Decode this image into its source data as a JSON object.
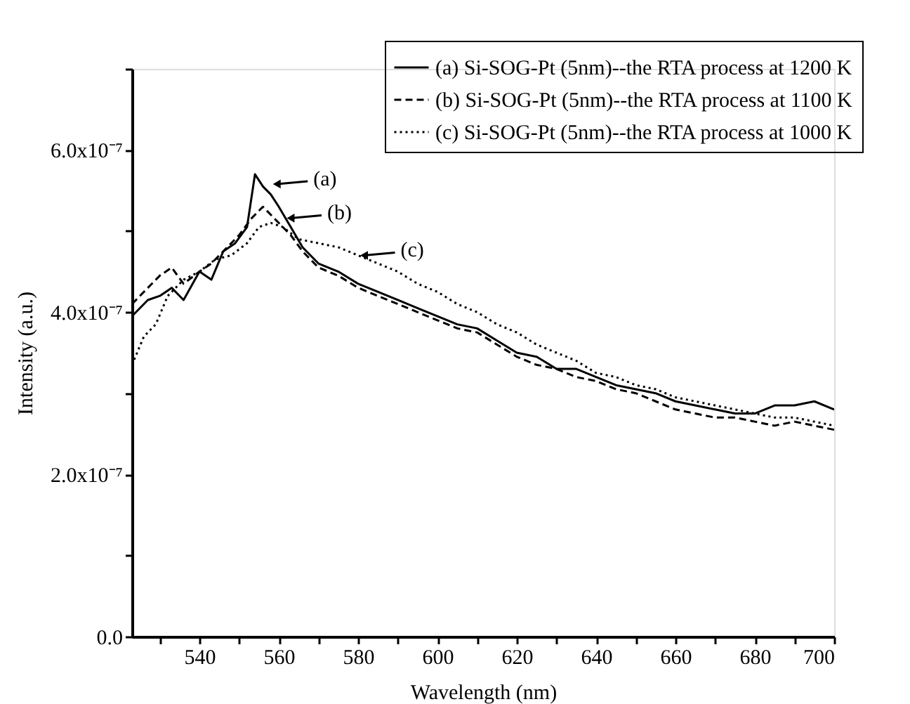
{
  "chart_data": {
    "type": "line",
    "xlabel": "Wavelength (nm)",
    "ylabel": "Intensity (a.u.)",
    "xlim": [
      523,
      700
    ],
    "ylim": [
      0,
      7e-07
    ],
    "xticks": [
      {
        "value": 530,
        "label": null
      },
      540,
      {
        "value": 550,
        "label": null
      },
      560,
      {
        "value": 570,
        "label": null
      },
      580,
      {
        "value": 590,
        "label": null
      },
      600,
      {
        "value": 610,
        "label": null
      },
      620,
      {
        "value": 630,
        "label": null
      },
      640,
      {
        "value": 650,
        "label": null
      },
      660,
      {
        "value": 670,
        "label": null
      },
      680,
      {
        "value": 690,
        "label": null
      },
      700
    ],
    "yticks": [
      {
        "value": 0,
        "label": "0.0"
      },
      {
        "value": 1e-07,
        "label": null
      },
      {
        "value": 2e-07,
        "label": "2.0x10⁻⁷"
      },
      {
        "value": 3e-07,
        "label": null
      },
      {
        "value": 4e-07,
        "label": "4.0x10⁻⁷"
      },
      {
        "value": 5e-07,
        "label": null
      },
      {
        "value": 6e-07,
        "label": "6.0x10⁻⁷"
      },
      {
        "value": 7e-07,
        "label": null
      }
    ],
    "legend": "top right",
    "grid": false,
    "marker": "none",
    "series": [
      {
        "name": "(a) Si-SOG-Pt (5nm)--the RTA process at 1200 K",
        "color": "#000000",
        "line_style": "solid",
        "x": [
          523,
          527,
          530,
          533,
          536,
          540,
          543,
          546,
          549,
          552,
          554,
          556,
          558,
          560,
          563,
          566,
          570,
          575,
          580,
          585,
          590,
          595,
          600,
          605,
          610,
          615,
          620,
          625,
          630,
          635,
          640,
          645,
          650,
          655,
          660,
          665,
          670,
          675,
          680,
          685,
          690,
          695,
          700
        ],
        "values": [
          3.95e-07,
          4.15e-07,
          4.2e-07,
          4.3e-07,
          4.15e-07,
          4.5e-07,
          4.4e-07,
          4.75e-07,
          4.85e-07,
          5.05e-07,
          5.7e-07,
          5.55e-07,
          5.45e-07,
          5.3e-07,
          5.05e-07,
          4.8e-07,
          4.6e-07,
          4.5e-07,
          4.35e-07,
          4.25e-07,
          4.15e-07,
          4.05e-07,
          3.95e-07,
          3.85e-07,
          3.8e-07,
          3.65e-07,
          3.5e-07,
          3.45e-07,
          3.3e-07,
          3.3e-07,
          3.2e-07,
          3.1e-07,
          3.05e-07,
          3e-07,
          2.9e-07,
          2.85e-07,
          2.8e-07,
          2.75e-07,
          2.75e-07,
          2.85e-07,
          2.85e-07,
          2.9e-07,
          2.8e-07
        ]
      },
      {
        "name": "(b) Si-SOG-Pt (5nm)--the RTA process at 1100 K",
        "color": "#000000",
        "line_style": "dashed",
        "x": [
          523,
          527,
          530,
          533,
          536,
          540,
          543,
          546,
          550,
          553,
          556,
          558,
          560,
          563,
          566,
          570,
          575,
          580,
          585,
          590,
          595,
          600,
          605,
          610,
          615,
          620,
          625,
          630,
          635,
          640,
          645,
          650,
          655,
          660,
          665,
          670,
          675,
          680,
          685,
          690,
          695,
          700
        ],
        "values": [
          4.1e-07,
          4.3e-07,
          4.45e-07,
          4.55e-07,
          4.35e-07,
          4.5e-07,
          4.6e-07,
          4.75e-07,
          4.95e-07,
          5.15e-07,
          5.3e-07,
          5.2e-07,
          5.1e-07,
          4.95e-07,
          4.75e-07,
          4.55e-07,
          4.45e-07,
          4.3e-07,
          4.2e-07,
          4.1e-07,
          4e-07,
          3.9e-07,
          3.8e-07,
          3.75e-07,
          3.6e-07,
          3.45e-07,
          3.35e-07,
          3.3e-07,
          3.2e-07,
          3.15e-07,
          3.05e-07,
          3e-07,
          2.9e-07,
          2.8e-07,
          2.75e-07,
          2.7e-07,
          2.7e-07,
          2.65e-07,
          2.6e-07,
          2.65e-07,
          2.6e-07,
          2.55e-07
        ]
      },
      {
        "name": "(c) Si-SOG-Pt (5nm)--the RTA process at 1000 K",
        "color": "#000000",
        "line_style": "dotted",
        "x": [
          523,
          526,
          529,
          532,
          536,
          540,
          544,
          548,
          552,
          555,
          558,
          561,
          565,
          570,
          575,
          580,
          585,
          590,
          595,
          600,
          605,
          610,
          615,
          620,
          625,
          630,
          635,
          640,
          645,
          650,
          655,
          660,
          665,
          670,
          675,
          680,
          685,
          690,
          695,
          700
        ],
        "values": [
          3.35e-07,
          3.7e-07,
          3.85e-07,
          4.2e-07,
          4.4e-07,
          4.5e-07,
          4.65e-07,
          4.7e-07,
          4.85e-07,
          5.05e-07,
          5.1e-07,
          5.05e-07,
          4.9e-07,
          4.85e-07,
          4.8e-07,
          4.7e-07,
          4.6e-07,
          4.5e-07,
          4.35e-07,
          4.25e-07,
          4.1e-07,
          4e-07,
          3.85e-07,
          3.75e-07,
          3.6e-07,
          3.5e-07,
          3.4e-07,
          3.25e-07,
          3.2e-07,
          3.1e-07,
          3.05e-07,
          2.95e-07,
          2.9e-07,
          2.85e-07,
          2.8e-07,
          2.75e-07,
          2.7e-07,
          2.7e-07,
          2.65e-07,
          2.6e-07
        ]
      }
    ],
    "annotations": [
      {
        "text": "(a)",
        "x": 559.5,
        "y": 5.58e-07
      },
      {
        "text": "(b)",
        "x": 563,
        "y": 5.16e-07
      },
      {
        "text": "(c)",
        "x": 581.5,
        "y": 4.7e-07
      }
    ]
  }
}
